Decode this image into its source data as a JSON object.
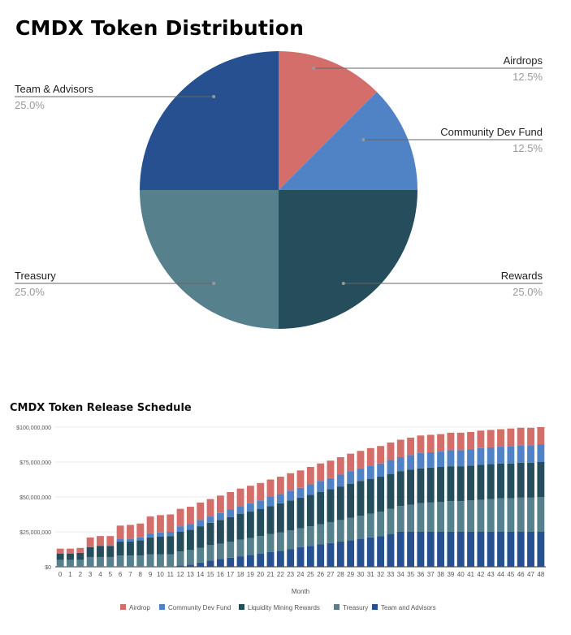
{
  "chart_data": [
    {
      "type": "pie",
      "title": "CMDX Token Distribution",
      "slices": [
        {
          "label": "Airdrops",
          "value": 12.5,
          "pct_label": "12.5%",
          "color": "#d36e6b"
        },
        {
          "label": "Community Dev Fund",
          "value": 12.5,
          "pct_label": "12.5%",
          "color": "#5083c6"
        },
        {
          "label": "Rewards",
          "value": 25.0,
          "pct_label": "25.0%",
          "color": "#254d5b"
        },
        {
          "label": "Treasury",
          "value": 25.0,
          "pct_label": "25.0%",
          "color": "#55808c"
        },
        {
          "label": "Team & Advisors",
          "value": 25.0,
          "pct_label": "25.0%",
          "color": "#26508f"
        }
      ]
    },
    {
      "type": "bar",
      "stacked": true,
      "title": "CMDX Token Release Schedule",
      "xlabel": "Month",
      "ylabel": "",
      "ylim": [
        0,
        100000000
      ],
      "yticks": [
        "$0",
        "$25,000,000",
        "$50,000,000",
        "$75,000,000",
        "$100,000,000"
      ],
      "ytick_values": [
        0,
        25000000,
        50000000,
        75000000,
        100000000
      ],
      "grid": true,
      "legend_position": "bottom",
      "categories": [
        "0",
        "1",
        "2",
        "3",
        "4",
        "5",
        "6",
        "7",
        "8",
        "9",
        "10",
        "11",
        "12",
        "13",
        "14",
        "15",
        "16",
        "17",
        "18",
        "19",
        "20",
        "21",
        "22",
        "23",
        "24",
        "25",
        "26",
        "27",
        "28",
        "29",
        "30",
        "31",
        "32",
        "33",
        "34",
        "35",
        "36",
        "37",
        "38",
        "39",
        "40",
        "41",
        "42",
        "43",
        "44",
        "45",
        "46",
        "47",
        "48"
      ],
      "series": [
        {
          "name": "Team and Advisors",
          "color": "#26508f",
          "values": [
            0,
            0,
            0,
            0,
            0,
            0,
            0,
            0,
            0,
            0,
            0,
            0,
            1000000,
            1500000,
            3000000,
            4500000,
            5500000,
            6500000,
            7500000,
            8500000,
            9500000,
            10500000,
            11500000,
            12500000,
            14000000,
            15000000,
            16000000,
            17000000,
            18000000,
            19000000,
            20000000,
            21000000,
            22000000,
            23500000,
            25000000,
            25000000,
            25000000,
            25000000,
            25000000,
            25000000,
            25000000,
            25000000,
            25000000,
            25000000,
            25000000,
            25000000,
            25000000,
            25000000,
            25000000
          ]
        },
        {
          "name": "Treasury",
          "color": "#55808c",
          "values": [
            5000000,
            5000000,
            5000000,
            7000000,
            7000000,
            7000000,
            8000000,
            8000000,
            8000000,
            9000000,
            9000000,
            9000000,
            10000000,
            10500000,
            10500000,
            11000000,
            11000000,
            11500000,
            12000000,
            12000000,
            12500000,
            13000000,
            13000000,
            13500000,
            13500000,
            14000000,
            14500000,
            15000000,
            15500000,
            16000000,
            16500000,
            17000000,
            17500000,
            18000000,
            18500000,
            19500000,
            20500000,
            21000000,
            21500000,
            22000000,
            22000000,
            22500000,
            23000000,
            23500000,
            24000000,
            24000000,
            24500000,
            24500000,
            25000000
          ]
        },
        {
          "name": "Liquidity Mining Rewards",
          "color": "#254d5b",
          "values": [
            4500000,
            4500000,
            5000000,
            7000000,
            8000000,
            8000000,
            10000000,
            10000000,
            11000000,
            12000000,
            12500000,
            13000000,
            14000000,
            14500000,
            15500000,
            16000000,
            17000000,
            17500000,
            18500000,
            19000000,
            19500000,
            20000000,
            21000000,
            21500000,
            22000000,
            22500000,
            23000000,
            23500000,
            24000000,
            24500000,
            25000000,
            25000000,
            25000000,
            25000000,
            25000000,
            25000000,
            25000000,
            25000000,
            25000000,
            25000000,
            25000000,
            25000000,
            25000000,
            25000000,
            25000000,
            25000000,
            25000000,
            25000000,
            25000000
          ]
        },
        {
          "name": "Community Dev Fund",
          "color": "#5083c6",
          "values": [
            0,
            0,
            0,
            0,
            0,
            0,
            2000000,
            2000000,
            2000000,
            3000000,
            3000000,
            3000000,
            4000000,
            4000000,
            4500000,
            4500000,
            5000000,
            5500000,
            5500000,
            6000000,
            6000000,
            6500000,
            6500000,
            7000000,
            7000000,
            7500000,
            8000000,
            8000000,
            8500000,
            9000000,
            9000000,
            9500000,
            9500000,
            10000000,
            10000000,
            10500000,
            11000000,
            11000000,
            11000000,
            11500000,
            11500000,
            11500000,
            12000000,
            12000000,
            12000000,
            12500000,
            12500000,
            12500000,
            12500000
          ]
        },
        {
          "name": "Airdrop",
          "color": "#d36e6b",
          "values": [
            3500000,
            3500000,
            3500000,
            7000000,
            7000000,
            7000000,
            9500000,
            10000000,
            10000000,
            12000000,
            12500000,
            12500000,
            12500000,
            12500000,
            12500000,
            12500000,
            12500000,
            12500000,
            12500000,
            12500000,
            12500000,
            12500000,
            12500000,
            12500000,
            12500000,
            12500000,
            12500000,
            12500000,
            12500000,
            12500000,
            12500000,
            12500000,
            12500000,
            12500000,
            12500000,
            12500000,
            12500000,
            12500000,
            12500000,
            12500000,
            12500000,
            12500000,
            12500000,
            12500000,
            12500000,
            12500000,
            12500000,
            12500000,
            12500000
          ]
        }
      ],
      "legend_order": [
        "Airdrop",
        "Community Dev Fund",
        "Liquidity Mining Rewards",
        "Treasury",
        "Team and Advisors"
      ]
    }
  ]
}
